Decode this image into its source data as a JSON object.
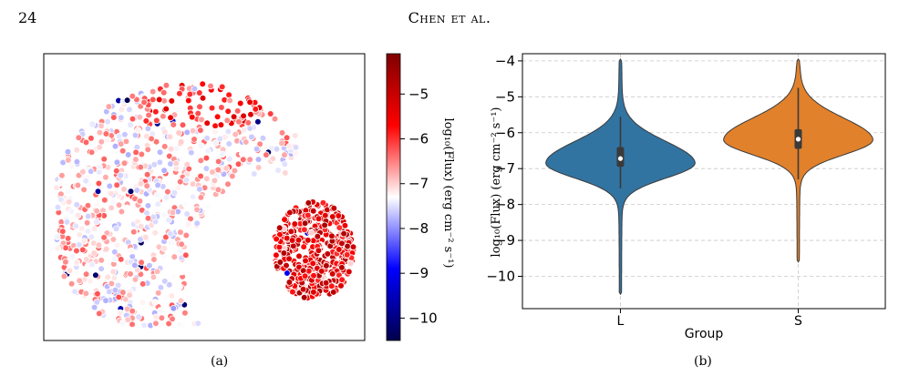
{
  "page": {
    "number": "24",
    "running_head": "Chen et al."
  },
  "panel_a": {
    "caption": "(a)",
    "colorbar": {
      "label": "log₁₀(Flux) (erg cm⁻² s⁻¹)",
      "ticks": [
        "−5",
        "−6",
        "−7",
        "−8",
        "−9",
        "−10"
      ]
    }
  },
  "panel_b": {
    "caption": "(b)",
    "ylabel": "log₁₀(Flux) (erg cm⁻² s⁻¹)",
    "xlabel": "Group"
  },
  "chart_data": [
    {
      "type": "scatter",
      "panel": "a",
      "description_colormap": "seismic",
      "colorbar_range": [
        -10.5,
        -4.1
      ],
      "colorbar_ticks": [
        -5,
        -6,
        -7,
        -8,
        -9,
        -10
      ],
      "axes_visible": false
    },
    {
      "type": "violin",
      "panel": "b",
      "xlabel": "Group",
      "ylabel": "log10(Flux) (erg cm^-2 s^-1)",
      "categories": [
        "L",
        "S"
      ],
      "ylim": [
        -10.9,
        -3.8
      ],
      "yticks": [
        -4,
        -5,
        -6,
        -7,
        -8,
        -9,
        -10
      ],
      "yticklabels": [
        "−4",
        "−5",
        "−6",
        "−7",
        "−8",
        "−9",
        "−10"
      ],
      "grid": true,
      "series": [
        {
          "category": "L",
          "color": "#3274a1",
          "min": -10.5,
          "max": -3.95,
          "q1": -6.95,
          "median": -6.72,
          "q3": -6.4,
          "whisker_low": -7.55,
          "whisker_high": -5.55,
          "mode": -6.85
        },
        {
          "category": "S",
          "color": "#e1812c",
          "min": -9.6,
          "max": -3.95,
          "q1": -6.45,
          "median": -6.18,
          "q3": -5.9,
          "whisker_low": -7.3,
          "whisker_high": -4.75,
          "mode": -6.2
        }
      ]
    }
  ]
}
